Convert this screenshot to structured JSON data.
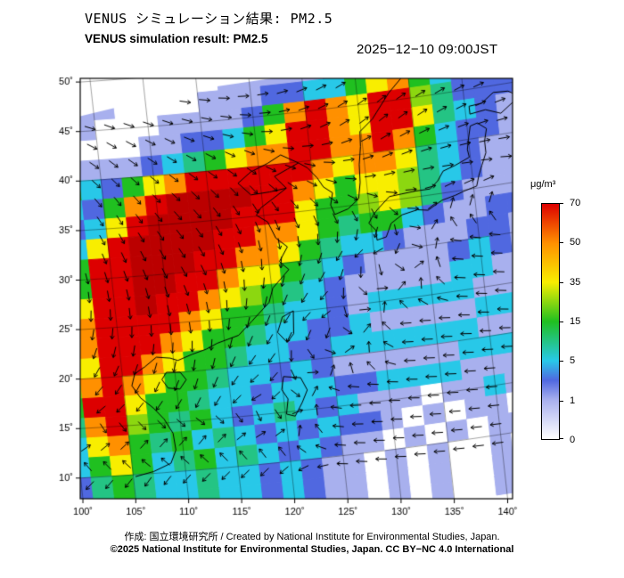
{
  "header": {
    "title_ja": "VENUS シミュレーション結果: PM2.5",
    "title_en": "VENUS simulation result: PM2.5",
    "timestamp": "2025−12−10 09:00JST"
  },
  "footer": {
    "credit": "作成: 国立環境研究所 / Created by National Institute for Environmental Studies, Japan.",
    "license": "©2025 National Institute for Environmental Studies, Japan. CC BY−NC 4.0 International"
  },
  "chart_data": {
    "type": "heatmap",
    "title": "VENUS simulation result: PM2.5",
    "variable": "PM2.5 concentration",
    "units": "μg/m³",
    "x_axis": {
      "ticks": [
        100,
        105,
        110,
        115,
        120,
        125,
        130,
        135,
        140
      ],
      "range": [
        100,
        145
      ],
      "tick_suffix": "˚"
    },
    "y_axis": {
      "ticks": [
        10,
        15,
        20,
        25,
        30,
        35,
        40,
        45,
        50
      ],
      "range": [
        8,
        52
      ],
      "tick_suffix": "˚"
    },
    "colorbar": {
      "label": "μg/m³",
      "tick_values": [
        0,
        1,
        5,
        15,
        35,
        50,
        70
      ],
      "stops": [
        {
          "pct": 0,
          "color": "#ffffff"
        },
        {
          "pct": 16.7,
          "color": "#a8b0ee"
        },
        {
          "pct": 25,
          "color": "#5068e0"
        },
        {
          "pct": 33.3,
          "color": "#28c8e8"
        },
        {
          "pct": 50,
          "color": "#20c020"
        },
        {
          "pct": 66.7,
          "color": "#f8ee00"
        },
        {
          "pct": 83.3,
          "color": "#ff9000"
        },
        {
          "pct": 100,
          "color": "#dd0000"
        }
      ]
    },
    "grid": {
      "lon_start": 100,
      "lon_step": 2,
      "lat_start": 53,
      "lat_step": -2,
      "values": [
        [
          0,
          0,
          0,
          0,
          0,
          0,
          0,
          0,
          0,
          0,
          1,
          1,
          1,
          0,
          0,
          3,
          5,
          10,
          15,
          10,
          5,
          3,
          3
        ],
        [
          0,
          0,
          0,
          0,
          0,
          0,
          0,
          0,
          0,
          0,
          1,
          1,
          1,
          0,
          0,
          3,
          5,
          10,
          15,
          10,
          5,
          3,
          3
        ],
        [
          0,
          0,
          1,
          1,
          0,
          0,
          0,
          0,
          0,
          1,
          1,
          1,
          1,
          1,
          3,
          5,
          15,
          25,
          15,
          10,
          5,
          3,
          3
        ],
        [
          0,
          1,
          1,
          1,
          0,
          0,
          0,
          0,
          1,
          1,
          1,
          3,
          3,
          5,
          5,
          15,
          35,
          50,
          15,
          5,
          3,
          3,
          1
        ],
        [
          1,
          1,
          1,
          0,
          0,
          0,
          1,
          1,
          1,
          1,
          3,
          15,
          50,
          70,
          50,
          35,
          70,
          70,
          25,
          10,
          3,
          3,
          3
        ],
        [
          1,
          1,
          0,
          0,
          0,
          1,
          1,
          3,
          3,
          5,
          15,
          35,
          70,
          70,
          50,
          35,
          70,
          70,
          35,
          10,
          5,
          3,
          1
        ],
        [
          5,
          3,
          1,
          1,
          1,
          3,
          5,
          10,
          15,
          35,
          50,
          50,
          70,
          70,
          50,
          50,
          70,
          50,
          15,
          5,
          3,
          3,
          1
        ],
        [
          5,
          15,
          5,
          3,
          15,
          35,
          50,
          70,
          70,
          70,
          70,
          70,
          70,
          50,
          35,
          50,
          50,
          35,
          10,
          5,
          3,
          1,
          1
        ],
        [
          3,
          5,
          3,
          15,
          50,
          70,
          80,
          80,
          80,
          80,
          70,
          70,
          50,
          35,
          15,
          35,
          35,
          25,
          10,
          5,
          3,
          1,
          1
        ],
        [
          1,
          3,
          5,
          35,
          70,
          80,
          80,
          80,
          80,
          70,
          70,
          70,
          35,
          15,
          15,
          25,
          35,
          25,
          10,
          3,
          1,
          1,
          1
        ],
        [
          1,
          5,
          35,
          70,
          80,
          80,
          80,
          80,
          70,
          70,
          50,
          50,
          35,
          15,
          10,
          15,
          15,
          5,
          3,
          1,
          1,
          3,
          3
        ],
        [
          3,
          15,
          70,
          70,
          80,
          80,
          80,
          70,
          70,
          50,
          50,
          35,
          15,
          10,
          5,
          5,
          3,
          1,
          1,
          1,
          3,
          3,
          1
        ],
        [
          5,
          15,
          70,
          70,
          80,
          80,
          70,
          70,
          50,
          35,
          35,
          15,
          10,
          5,
          3,
          1,
          1,
          1,
          1,
          3,
          5,
          3,
          1
        ],
        [
          5,
          35,
          70,
          70,
          80,
          70,
          70,
          50,
          35,
          25,
          15,
          10,
          5,
          3,
          1,
          1,
          1,
          1,
          1,
          5,
          5,
          1,
          1
        ],
        [
          15,
          50,
          70,
          70,
          70,
          70,
          50,
          35,
          15,
          15,
          10,
          5,
          5,
          3,
          1,
          5,
          5,
          5,
          5,
          5,
          1,
          1,
          5
        ],
        [
          15,
          50,
          70,
          70,
          70,
          50,
          35,
          15,
          15,
          10,
          5,
          5,
          3,
          3,
          5,
          1,
          1,
          1,
          1,
          1,
          5,
          5,
          1
        ],
        [
          15,
          35,
          70,
          70,
          50,
          35,
          15,
          15,
          10,
          5,
          5,
          3,
          3,
          5,
          5,
          5,
          5,
          5,
          5,
          5,
          1,
          1,
          5
        ],
        [
          25,
          50,
          70,
          50,
          35,
          15,
          15,
          10,
          5,
          5,
          3,
          5,
          3,
          1,
          1,
          1,
          1,
          1,
          1,
          5,
          5,
          5,
          1
        ],
        [
          15,
          70,
          70,
          35,
          15,
          15,
          10,
          5,
          5,
          3,
          5,
          5,
          5,
          3,
          3,
          5,
          5,
          5,
          5,
          1,
          1,
          1,
          1
        ],
        [
          10,
          50,
          70,
          25,
          15,
          10,
          15,
          5,
          3,
          5,
          10,
          5,
          3,
          5,
          1,
          1,
          1,
          0,
          1,
          1,
          5,
          1,
          1
        ],
        [
          5,
          35,
          50,
          15,
          10,
          15,
          5,
          10,
          5,
          3,
          5,
          3,
          5,
          3,
          3,
          1,
          0,
          1,
          0,
          1,
          1,
          0,
          1
        ],
        [
          5,
          15,
          35,
          15,
          5,
          10,
          15,
          5,
          10,
          5,
          3,
          5,
          3,
          1,
          1,
          0,
          1,
          0,
          1,
          0,
          1,
          1,
          0
        ],
        [
          3,
          10,
          15,
          10,
          5,
          5,
          10,
          5,
          5,
          3,
          5,
          3,
          1,
          1,
          0,
          1,
          0,
          1,
          0,
          0,
          1,
          0,
          1
        ],
        [
          3,
          10,
          15,
          10,
          5,
          5,
          10,
          5,
          5,
          3,
          5,
          3,
          1,
          1,
          0,
          1,
          0,
          1,
          0,
          0,
          1,
          0,
          1
        ],
        [
          3,
          10,
          15,
          10,
          5,
          5,
          10,
          5,
          5,
          3,
          5,
          3,
          1,
          1,
          0,
          1,
          0,
          1,
          0,
          0,
          1,
          0,
          1
        ]
      ]
    },
    "wind": {
      "lon_nodes": [
        100,
        106.3,
        112.6,
        118.9,
        125.1,
        131.4,
        137.7,
        144
      ],
      "lat_nodes": [
        50,
        43.3,
        36.6,
        30,
        23.3,
        16.6,
        10
      ],
      "angles_deg": [
        [
          15,
          5,
          0,
          10,
          25,
          35,
          30,
          25
        ],
        [
          -20,
          -30,
          -25,
          -10,
          20,
          40,
          30,
          20
        ],
        [
          -50,
          -55,
          -45,
          -55,
          -35,
          10,
          5,
          0
        ],
        [
          -80,
          -70,
          -60,
          -85,
          -110,
          -160,
          175,
          180
        ],
        [
          -110,
          -95,
          -85,
          -115,
          -150,
          185,
          180,
          178
        ],
        [
          -150,
          -130,
          -115,
          -160,
          185,
          180,
          183,
          186
        ],
        [
          185,
          195,
          188,
          182,
          178,
          182,
          186,
          190
        ]
      ]
    },
    "coastlines": [
      {
        "name": "russia-korea-coast",
        "points": [
          [
            136,
            48.8
          ],
          [
            133,
            45.8
          ],
          [
            131.2,
            43.4
          ],
          [
            129.9,
            42.3
          ],
          [
            129.8,
            40.8
          ],
          [
            129.5,
            39
          ],
          [
            129.4,
            37.2
          ],
          [
            129.1,
            35.6
          ],
          [
            128,
            34.7
          ],
          [
            126.7,
            34.3
          ],
          [
            126.4,
            35.3
          ],
          [
            126.7,
            36.5
          ],
          [
            125.9,
            37.2
          ],
          [
            125.4,
            38.2
          ],
          [
            124.6,
            39.3
          ],
          [
            123.8,
            39.9
          ]
        ]
      },
      {
        "name": "bohai-coast",
        "points": [
          [
            123.8,
            39.9
          ],
          [
            122.7,
            39.4
          ],
          [
            121.4,
            38.8
          ],
          [
            122.4,
            37.5
          ],
          [
            120.8,
            37.3
          ],
          [
            119,
            37.2
          ],
          [
            117.9,
            38.5
          ],
          [
            119.2,
            39.5
          ],
          [
            120.9,
            40.2
          ],
          [
            122.2,
            40.9
          ],
          [
            123.8,
            39.9
          ]
        ]
      },
      {
        "name": "china-vietnam-coast",
        "points": [
          [
            122.4,
            37.5
          ],
          [
            121.2,
            36.7
          ],
          [
            119.8,
            35.8
          ],
          [
            119.3,
            35.1
          ],
          [
            120.3,
            34.3
          ],
          [
            120.9,
            32.6
          ],
          [
            121.9,
            31.6
          ],
          [
            121,
            30.2
          ],
          [
            121.8,
            29.3
          ],
          [
            120.1,
            27.6
          ],
          [
            119.6,
            26.2
          ],
          [
            117.8,
            24.5
          ],
          [
            116.4,
            23.2
          ],
          [
            114.3,
            22.6
          ],
          [
            113.2,
            22.1
          ],
          [
            111.8,
            21.7
          ],
          [
            110.4,
            21.2
          ],
          [
            109.7,
            21.5
          ],
          [
            108.4,
            21.7
          ],
          [
            107.2,
            20.8
          ],
          [
            106.2,
            20.2
          ],
          [
            105.8,
            19
          ],
          [
            106.5,
            17.7
          ],
          [
            107.6,
            16.6
          ],
          [
            108.5,
            15.4
          ],
          [
            109.2,
            13.9
          ],
          [
            109.3,
            12.2
          ],
          [
            108.7,
            10.9
          ],
          [
            107,
            10.2
          ],
          [
            105.2,
            9.8
          ]
        ]
      },
      {
        "name": "japan-honshu",
        "points": [
          [
            130.4,
            31.2
          ],
          [
            131.3,
            31.4
          ],
          [
            131.9,
            32.7
          ],
          [
            133,
            33.4
          ],
          [
            134.5,
            33.7
          ],
          [
            135.5,
            33.5
          ],
          [
            136.9,
            34.3
          ],
          [
            138.2,
            34.6
          ],
          [
            139.1,
            34.9
          ],
          [
            140.3,
            35.2
          ],
          [
            140.6,
            36.2
          ],
          [
            141,
            37.2
          ],
          [
            141.5,
            38.4
          ],
          [
            141.5,
            39.6
          ],
          [
            141.8,
            40.8
          ],
          [
            141,
            41.5
          ],
          [
            140.3,
            41.3
          ],
          [
            140,
            40
          ],
          [
            139.8,
            39
          ],
          [
            139.9,
            38.2
          ],
          [
            138.5,
            37.6
          ],
          [
            137.3,
            37.2
          ],
          [
            136.7,
            36.3
          ],
          [
            135.9,
            35.6
          ],
          [
            134.5,
            35.6
          ],
          [
            133.2,
            35.5
          ],
          [
            132,
            35.4
          ],
          [
            130.9,
            34.4
          ],
          [
            130.4,
            33.9
          ],
          [
            129.8,
            33
          ],
          [
            130.4,
            32.2
          ],
          [
            130.4,
            31.2
          ]
        ]
      },
      {
        "name": "japan-hokkaido",
        "points": [
          [
            140.4,
            42.5
          ],
          [
            141.9,
            42.7
          ],
          [
            143.3,
            42.1
          ],
          [
            145.2,
            43.5
          ],
          [
            144.2,
            44.2
          ],
          [
            142.8,
            44.3
          ],
          [
            141.6,
            43.4
          ],
          [
            140.4,
            43.3
          ],
          [
            140.4,
            42.5
          ]
        ]
      },
      {
        "name": "sakhalin",
        "points": [
          [
            142,
            46
          ],
          [
            142.4,
            48
          ],
          [
            142.1,
            50
          ],
          [
            142.7,
            52
          ]
        ]
      },
      {
        "name": "taiwan",
        "points": [
          [
            121.8,
            25.1
          ],
          [
            120.7,
            24.6
          ],
          [
            120.1,
            23.1
          ],
          [
            120.9,
            22
          ],
          [
            121.6,
            22.8
          ],
          [
            121.8,
            25.1
          ]
        ]
      },
      {
        "name": "hainan",
        "points": [
          [
            109.2,
            20.1
          ],
          [
            110.5,
            20
          ],
          [
            111,
            19.2
          ],
          [
            110.3,
            18.3
          ],
          [
            109.2,
            18.5
          ],
          [
            108.7,
            19.4
          ],
          [
            109.2,
            20.1
          ]
        ]
      },
      {
        "name": "luzon",
        "points": [
          [
            120.2,
            18.6
          ],
          [
            121.8,
            18.3
          ],
          [
            122.3,
            17
          ],
          [
            121.7,
            15.8
          ],
          [
            120.9,
            14.5
          ],
          [
            120.1,
            14.8
          ],
          [
            120.4,
            16.3
          ],
          [
            119.9,
            17.3
          ],
          [
            120.2,
            18.6
          ]
        ]
      }
    ]
  }
}
